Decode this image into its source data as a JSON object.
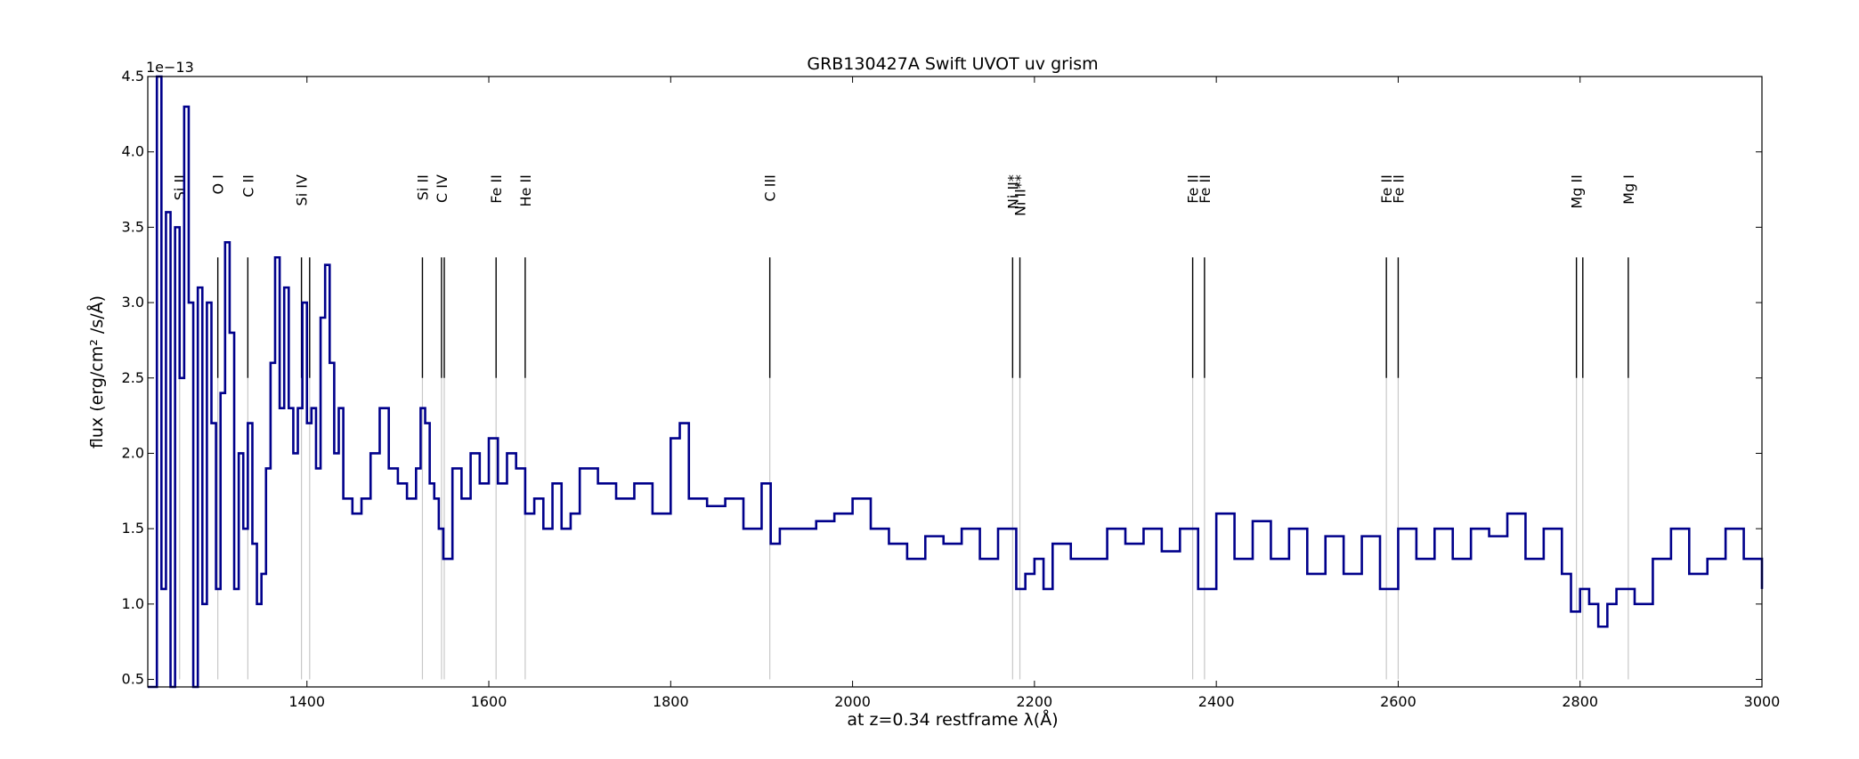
{
  "chart_data": {
    "type": "line",
    "title": "GRB130427A Swift UVOT uv grism",
    "xlabel": "at z=0.34 restframe λ(Å)",
    "ylabel": "flux (erg/cm² /s/Å)",
    "y_multiplier": "1e−13",
    "xlim": [
      1225,
      3000
    ],
    "ylim": [
      0.45,
      4.5
    ],
    "xticks": [
      1400,
      1600,
      1800,
      2000,
      2200,
      2400,
      2600,
      2800,
      3000
    ],
    "xtick_labels": [
      "1400",
      "1600",
      "1800",
      "2000",
      "2200",
      "2400",
      "2600",
      "2800",
      "3000"
    ],
    "yticks": [
      0.5,
      1.0,
      1.5,
      2.0,
      2.5,
      3.0,
      3.5,
      4.0,
      4.5
    ],
    "ytick_labels": [
      "0.5",
      "1.0",
      "1.5",
      "2.0",
      "2.5",
      "3.0",
      "3.5",
      "4.0",
      "4.5"
    ],
    "grid": false,
    "series_color": "#00008B",
    "marker_color": "#000000",
    "marker_faint_color": "#c8c8c8",
    "series": [
      {
        "x": [
          1225,
          1235,
          1240,
          1245,
          1250,
          1255,
          1260,
          1265,
          1270,
          1275,
          1280,
          1285,
          1290,
          1295,
          1300,
          1305,
          1310,
          1315,
          1320,
          1325,
          1330,
          1335,
          1340,
          1345,
          1350,
          1355,
          1360,
          1365,
          1370,
          1375,
          1380,
          1385,
          1390,
          1395,
          1400,
          1405,
          1410,
          1415,
          1420,
          1425,
          1430,
          1435,
          1440,
          1450,
          1460,
          1470,
          1480,
          1490,
          1500,
          1510,
          1520,
          1525,
          1530,
          1535,
          1540,
          1545,
          1550,
          1560,
          1570,
          1580,
          1590,
          1600,
          1610,
          1620,
          1630,
          1640,
          1650,
          1660,
          1670,
          1680,
          1690,
          1700,
          1720,
          1740,
          1760,
          1780,
          1800,
          1810,
          1820,
          1840,
          1860,
          1880,
          1900,
          1910,
          1920,
          1940,
          1960,
          1980,
          2000,
          2020,
          2040,
          2060,
          2080,
          2100,
          2120,
          2140,
          2160,
          2180,
          2190,
          2200,
          2210,
          2220,
          2240,
          2260,
          2280,
          2300,
          2320,
          2340,
          2360,
          2380,
          2400,
          2420,
          2440,
          2460,
          2480,
          2500,
          2520,
          2540,
          2560,
          2580,
          2600,
          2620,
          2640,
          2660,
          2680,
          2700,
          2720,
          2740,
          2760,
          2780,
          2790,
          2800,
          2810,
          2820,
          2830,
          2840,
          2860,
          2880,
          2900,
          2920,
          2940,
          2960,
          2980,
          3000
        ],
        "y": [
          0.3,
          4.5,
          1.1,
          3.6,
          0.4,
          3.5,
          2.5,
          4.3,
          3.0,
          0.4,
          3.1,
          1.0,
          3.0,
          2.2,
          1.1,
          2.4,
          3.4,
          2.8,
          1.1,
          2.0,
          1.5,
          2.2,
          1.4,
          1.0,
          1.2,
          1.9,
          2.6,
          3.3,
          2.3,
          3.1,
          2.3,
          2.0,
          2.3,
          3.0,
          2.2,
          2.3,
          1.9,
          2.9,
          3.25,
          2.6,
          2.0,
          2.3,
          1.7,
          1.6,
          1.7,
          2.0,
          2.3,
          1.9,
          1.8,
          1.7,
          1.9,
          2.3,
          2.2,
          1.8,
          1.7,
          1.5,
          1.3,
          1.9,
          1.7,
          2.0,
          1.8,
          2.1,
          1.8,
          2.0,
          1.9,
          1.6,
          1.7,
          1.5,
          1.8,
          1.5,
          1.6,
          1.9,
          1.8,
          1.7,
          1.8,
          1.6,
          2.1,
          2.2,
          1.7,
          1.65,
          1.7,
          1.5,
          1.8,
          1.4,
          1.5,
          1.5,
          1.55,
          1.6,
          1.7,
          1.5,
          1.4,
          1.3,
          1.45,
          1.4,
          1.5,
          1.3,
          1.5,
          1.1,
          1.2,
          1.3,
          1.1,
          1.4,
          1.3,
          1.3,
          1.5,
          1.4,
          1.5,
          1.35,
          1.5,
          1.1,
          1.6,
          1.3,
          1.55,
          1.3,
          1.5,
          1.2,
          1.45,
          1.2,
          1.45,
          1.1,
          1.5,
          1.3,
          1.5,
          1.3,
          1.5,
          1.45,
          1.6,
          1.3,
          1.5,
          1.2,
          0.95,
          1.1,
          1.0,
          0.85,
          1.0,
          1.1,
          1.0,
          1.3,
          1.5,
          1.2,
          1.3,
          1.5,
          1.3,
          1.1
        ]
      }
    ],
    "line_markers": [
      {
        "label": "Si II",
        "x": 1260
      },
      {
        "label": "O I",
        "x": 1302
      },
      {
        "label": "C II",
        "x": 1335
      },
      {
        "label": "Si IV",
        "x": 1394
      },
      {
        "label": "Si IV",
        "x": 1403,
        "label_hidden": true
      },
      {
        "label": "Si II",
        "x": 1527
      },
      {
        "label": "C IV",
        "x": 1548
      },
      {
        "label": "C IV",
        "x": 1551,
        "label_hidden": true
      },
      {
        "label": "Fe II",
        "x": 1608
      },
      {
        "label": "He II",
        "x": 1640
      },
      {
        "label": "C III",
        "x": 1909
      },
      {
        "label": "Ni II*",
        "x": 2176
      },
      {
        "label": "Ni II**",
        "x": 2184
      },
      {
        "label": "Fe II",
        "x": 2374
      },
      {
        "label": "Fe II",
        "x": 2387
      },
      {
        "label": "Fe II",
        "x": 2587
      },
      {
        "label": "Fe II",
        "x": 2600
      },
      {
        "label": "Mg II",
        "x": 2796
      },
      {
        "label": "Mg II",
        "x": 2803,
        "label_hidden": true
      },
      {
        "label": "Mg I",
        "x": 2853
      }
    ]
  }
}
